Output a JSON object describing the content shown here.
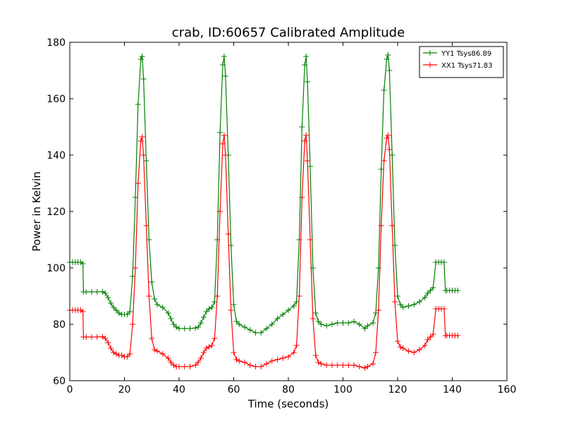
{
  "chart_data": {
    "type": "line",
    "title": "crab, ID:60657 Calibrated Amplitude",
    "xlabel": "Time (seconds)",
    "ylabel": "Power in Kelvin",
    "xlim": [
      0,
      160
    ],
    "ylim": [
      60,
      180
    ],
    "xticks": [
      0,
      20,
      40,
      60,
      80,
      100,
      120,
      140,
      160
    ],
    "yticks": [
      60,
      80,
      100,
      120,
      140,
      160,
      180
    ],
    "grid": false,
    "legend_position": "top-right",
    "marker": "+",
    "series": [
      {
        "name": "YY1 Tsys86.89",
        "color": "#008000",
        "points": [
          [
            0,
            102
          ],
          [
            1,
            102
          ],
          [
            2,
            102
          ],
          [
            3,
            102
          ],
          [
            4,
            102
          ],
          [
            4.8,
            101.5
          ],
          [
            5,
            91.5
          ],
          [
            6,
            91.5
          ],
          [
            8,
            91.5
          ],
          [
            10,
            91.5
          ],
          [
            12,
            91.6
          ],
          [
            13,
            91
          ],
          [
            14,
            89.5
          ],
          [
            15,
            87.5
          ],
          [
            16,
            86
          ],
          [
            17,
            85
          ],
          [
            18,
            84
          ],
          [
            19,
            83.5
          ],
          [
            20,
            83.5
          ],
          [
            21,
            83.5
          ],
          [
            22,
            84.5
          ],
          [
            23,
            97
          ],
          [
            24,
            125
          ],
          [
            25,
            158
          ],
          [
            26,
            174
          ],
          [
            26.5,
            175
          ],
          [
            27,
            167
          ],
          [
            28,
            138
          ],
          [
            29,
            110
          ],
          [
            30,
            95
          ],
          [
            31,
            89
          ],
          [
            32,
            87
          ],
          [
            34,
            86
          ],
          [
            36,
            84
          ],
          [
            37,
            82
          ],
          [
            38,
            80
          ],
          [
            39,
            79
          ],
          [
            40,
            78.5
          ],
          [
            42,
            78.5
          ],
          [
            44,
            78.5
          ],
          [
            46,
            78.7
          ],
          [
            47,
            79
          ],
          [
            48,
            80.5
          ],
          [
            49,
            82.5
          ],
          [
            50,
            84.5
          ],
          [
            51,
            85.5
          ],
          [
            52,
            86
          ],
          [
            53,
            88
          ],
          [
            54,
            110
          ],
          [
            55,
            148
          ],
          [
            56,
            172
          ],
          [
            56.5,
            175
          ],
          [
            57,
            168
          ],
          [
            58,
            140
          ],
          [
            59,
            108
          ],
          [
            60,
            87
          ],
          [
            61,
            81
          ],
          [
            62,
            80
          ],
          [
            64,
            79
          ],
          [
            66,
            78
          ],
          [
            68,
            77
          ],
          [
            70,
            77
          ],
          [
            72,
            78.5
          ],
          [
            74,
            80
          ],
          [
            76,
            82
          ],
          [
            78,
            83.5
          ],
          [
            80,
            85
          ],
          [
            82,
            86.5
          ],
          [
            83,
            88
          ],
          [
            84,
            110
          ],
          [
            85,
            150
          ],
          [
            86,
            172
          ],
          [
            86.5,
            175
          ],
          [
            87,
            166
          ],
          [
            88,
            136
          ],
          [
            89,
            100
          ],
          [
            90,
            84
          ],
          [
            91,
            81
          ],
          [
            92,
            80
          ],
          [
            94,
            79.5
          ],
          [
            96,
            80
          ],
          [
            98,
            80.5
          ],
          [
            100,
            80.5
          ],
          [
            102,
            80.5
          ],
          [
            104,
            81
          ],
          [
            106,
            80
          ],
          [
            108,
            78.5
          ],
          [
            109,
            79.5
          ],
          [
            111,
            80.5
          ],
          [
            112,
            84
          ],
          [
            113,
            100
          ],
          [
            114,
            135
          ],
          [
            115,
            163
          ],
          [
            116,
            174
          ],
          [
            116.5,
            175.5
          ],
          [
            117,
            170
          ],
          [
            118,
            140
          ],
          [
            119,
            108
          ],
          [
            120,
            90
          ],
          [
            121,
            87
          ],
          [
            122,
            86
          ],
          [
            124,
            86.5
          ],
          [
            126,
            87
          ],
          [
            128,
            88
          ],
          [
            130,
            89.5
          ],
          [
            131,
            91
          ],
          [
            132,
            92
          ],
          [
            133,
            93
          ],
          [
            134,
            102
          ],
          [
            135,
            102
          ],
          [
            136,
            102
          ],
          [
            137,
            102
          ],
          [
            137.5,
            92
          ],
          [
            138,
            92
          ],
          [
            139,
            92
          ],
          [
            140,
            92
          ],
          [
            141,
            92
          ],
          [
            142,
            92
          ]
        ]
      },
      {
        "name": "XX1 Tsys71.83",
        "color": "#ff0000",
        "points": [
          [
            0,
            85
          ],
          [
            1,
            85
          ],
          [
            2,
            85
          ],
          [
            3,
            85
          ],
          [
            4,
            85
          ],
          [
            4.8,
            84.5
          ],
          [
            5,
            75.5
          ],
          [
            6,
            75.5
          ],
          [
            8,
            75.5
          ],
          [
            10,
            75.5
          ],
          [
            12,
            75.6
          ],
          [
            13,
            75
          ],
          [
            14,
            73.5
          ],
          [
            15,
            71.5
          ],
          [
            16,
            70
          ],
          [
            17,
            69.5
          ],
          [
            18,
            69
          ],
          [
            19,
            69
          ],
          [
            20,
            68.5
          ],
          [
            21,
            68.5
          ],
          [
            22,
            69.5
          ],
          [
            23,
            80
          ],
          [
            24,
            100
          ],
          [
            25,
            130
          ],
          [
            26,
            145
          ],
          [
            26.5,
            146.5
          ],
          [
            27,
            140
          ],
          [
            28,
            115
          ],
          [
            29,
            90
          ],
          [
            30,
            75
          ],
          [
            31,
            71
          ],
          [
            32,
            70.5
          ],
          [
            34,
            69.5
          ],
          [
            36,
            68
          ],
          [
            37,
            66.5
          ],
          [
            38,
            65.5
          ],
          [
            39,
            65
          ],
          [
            40,
            65
          ],
          [
            42,
            65
          ],
          [
            44,
            65
          ],
          [
            46,
            65.5
          ],
          [
            47,
            66.5
          ],
          [
            48,
            68
          ],
          [
            49,
            70
          ],
          [
            50,
            71.5
          ],
          [
            51,
            72
          ],
          [
            52,
            72.5
          ],
          [
            53,
            75
          ],
          [
            54,
            90
          ],
          [
            55,
            120
          ],
          [
            56,
            144
          ],
          [
            56.5,
            147
          ],
          [
            57,
            140
          ],
          [
            58,
            112
          ],
          [
            59,
            85
          ],
          [
            60,
            70
          ],
          [
            61,
            67.5
          ],
          [
            62,
            67
          ],
          [
            64,
            66.5
          ],
          [
            66,
            65.5
          ],
          [
            68,
            65
          ],
          [
            70,
            65
          ],
          [
            72,
            66
          ],
          [
            74,
            67
          ],
          [
            76,
            67.5
          ],
          [
            78,
            68
          ],
          [
            80,
            68.5
          ],
          [
            82,
            70
          ],
          [
            83,
            72.5
          ],
          [
            84,
            90
          ],
          [
            85,
            125
          ],
          [
            86,
            145
          ],
          [
            86.5,
            147
          ],
          [
            87,
            138
          ],
          [
            88,
            110
          ],
          [
            89,
            82
          ],
          [
            90,
            69
          ],
          [
            91,
            66.5
          ],
          [
            92,
            66
          ],
          [
            94,
            65.5
          ],
          [
            96,
            65.5
          ],
          [
            98,
            65.5
          ],
          [
            100,
            65.5
          ],
          [
            102,
            65.5
          ],
          [
            104,
            65.5
          ],
          [
            106,
            65
          ],
          [
            108,
            64.5
          ],
          [
            109,
            65
          ],
          [
            111,
            66
          ],
          [
            112,
            70
          ],
          [
            113,
            85
          ],
          [
            114,
            115
          ],
          [
            115,
            138
          ],
          [
            116,
            146
          ],
          [
            116.5,
            147
          ],
          [
            117,
            142
          ],
          [
            118,
            115
          ],
          [
            119,
            88
          ],
          [
            120,
            74
          ],
          [
            121,
            72
          ],
          [
            122,
            71.5
          ],
          [
            124,
            70.5
          ],
          [
            126,
            70
          ],
          [
            128,
            71
          ],
          [
            130,
            72.5
          ],
          [
            131,
            74.5
          ],
          [
            132,
            75.5
          ],
          [
            133,
            76.5
          ],
          [
            134,
            85.5
          ],
          [
            135,
            85.5
          ],
          [
            136,
            85.5
          ],
          [
            137,
            85.5
          ],
          [
            137.5,
            76
          ],
          [
            138,
            76
          ],
          [
            139,
            76
          ],
          [
            140,
            76
          ],
          [
            141,
            76
          ],
          [
            142,
            76
          ]
        ]
      }
    ]
  }
}
